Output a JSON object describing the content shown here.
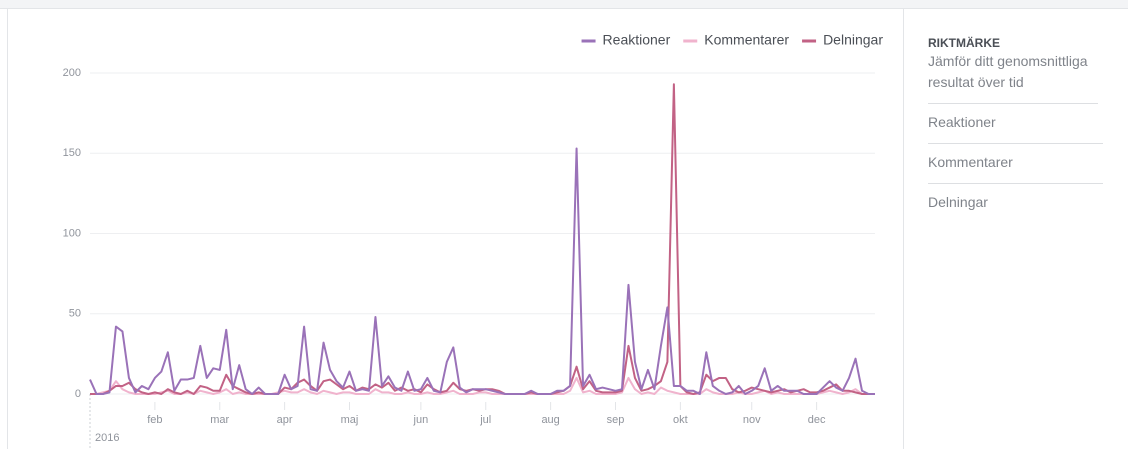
{
  "chart_data": {
    "type": "line",
    "categories": [
      null,
      null,
      null,
      null,
      null,
      null,
      null,
      null,
      null,
      null,
      "feb",
      null,
      null,
      null,
      null,
      null,
      null,
      null,
      null,
      null,
      "mar",
      null,
      null,
      null,
      null,
      null,
      null,
      null,
      null,
      null,
      "apr",
      null,
      null,
      null,
      null,
      null,
      null,
      null,
      null,
      null,
      "maj",
      null,
      null,
      null,
      null,
      null,
      null,
      null,
      null,
      null,
      null,
      "jun",
      null,
      null,
      null,
      null,
      null,
      null,
      null,
      null,
      null,
      "jul",
      null,
      null,
      null,
      null,
      null,
      null,
      null,
      null,
      null,
      "aug",
      null,
      null,
      null,
      null,
      null,
      null,
      null,
      null,
      null,
      "sep",
      null,
      null,
      null,
      null,
      null,
      null,
      null,
      null,
      null,
      "okt",
      null,
      null,
      null,
      null,
      null,
      null,
      null,
      null,
      null,
      null,
      "nov",
      null,
      null,
      null,
      null,
      null,
      null,
      null,
      null,
      null,
      "dec",
      null,
      null,
      null,
      null,
      null,
      null,
      null,
      null,
      null
    ],
    "year_label": "2016",
    "series": [
      {
        "name": "Reaktioner",
        "color": "#9a72b8",
        "values": [
          9,
          0,
          0,
          1,
          42,
          39,
          10,
          1,
          5,
          3,
          10,
          14,
          26,
          2,
          9,
          9,
          10,
          30,
          10,
          16,
          15,
          40,
          3,
          18,
          3,
          0,
          4,
          0,
          0,
          0,
          12,
          3,
          5,
          42,
          3,
          2,
          32,
          15,
          8,
          4,
          14,
          2,
          3,
          2,
          48,
          5,
          11,
          4,
          2,
          14,
          2,
          3,
          10,
          2,
          1,
          20,
          29,
          4,
          1,
          3,
          3,
          3,
          2,
          1,
          0,
          0,
          0,
          0,
          2,
          0,
          0,
          0,
          2,
          2,
          5,
          153,
          5,
          12,
          3,
          4,
          3,
          2,
          3,
          68,
          20,
          3,
          15,
          3,
          30,
          54,
          5,
          5,
          2,
          2,
          0,
          26,
          5,
          2,
          0,
          1,
          5,
          0,
          2,
          5,
          16,
          2,
          5,
          2,
          2,
          2,
          0,
          0,
          0,
          4,
          8,
          4,
          2,
          10,
          22,
          2,
          0,
          0
        ]
      },
      {
        "name": "Kommentarer",
        "color": "#f0b3cd",
        "values": [
          0,
          0,
          1,
          2,
          8,
          3,
          1,
          0,
          0,
          0,
          0,
          1,
          2,
          0,
          0,
          1,
          0,
          2,
          1,
          0,
          1,
          3,
          0,
          1,
          0,
          0,
          0,
          0,
          0,
          1,
          2,
          1,
          1,
          3,
          1,
          0,
          2,
          1,
          0,
          1,
          1,
          0,
          0,
          0,
          3,
          1,
          1,
          0,
          0,
          1,
          0,
          0,
          1,
          0,
          0,
          1,
          2,
          0,
          0,
          0,
          1,
          1,
          0,
          0,
          0,
          0,
          0,
          0,
          0,
          0,
          0,
          0,
          0,
          0,
          2,
          10,
          1,
          2,
          0,
          0,
          0,
          0,
          1,
          10,
          3,
          0,
          1,
          0,
          4,
          2,
          1,
          0,
          0,
          0,
          0,
          3,
          1,
          0,
          0,
          0,
          1,
          0,
          0,
          1,
          2,
          0,
          1,
          0,
          0,
          0,
          0,
          0,
          0,
          1,
          2,
          1,
          0,
          1,
          3,
          0,
          0,
          0
        ]
      },
      {
        "name": "Delningar",
        "color": "#c26285",
        "values": [
          0,
          0,
          0,
          2,
          5,
          5,
          7,
          3,
          1,
          0,
          1,
          0,
          3,
          1,
          0,
          2,
          0,
          5,
          4,
          2,
          2,
          12,
          5,
          3,
          1,
          0,
          1,
          0,
          0,
          0,
          4,
          3,
          7,
          9,
          5,
          2,
          8,
          9,
          6,
          3,
          5,
          2,
          4,
          3,
          6,
          4,
          7,
          2,
          4,
          2,
          3,
          1,
          6,
          3,
          1,
          2,
          7,
          3,
          2,
          3,
          2,
          3,
          3,
          2,
          0,
          0,
          0,
          0,
          1,
          0,
          0,
          0,
          1,
          2,
          5,
          17,
          3,
          8,
          2,
          1,
          1,
          1,
          2,
          30,
          10,
          2,
          3,
          5,
          8,
          20,
          193,
          5,
          1,
          0,
          1,
          12,
          8,
          10,
          10,
          3,
          1,
          2,
          4,
          3,
          2,
          1,
          2,
          3,
          1,
          2,
          3,
          1,
          1,
          2,
          4,
          6,
          2,
          2,
          1,
          0,
          0,
          0
        ]
      }
    ],
    "ylim": [
      0,
      200
    ],
    "yticks": [
      0,
      50,
      100,
      150,
      200
    ],
    "grid": true,
    "legend": "top-right"
  },
  "sidebar": {
    "title": "RIKTMÄRKE",
    "description": "Jämför ditt genomsnittliga resultat över tid",
    "items": [
      "Reaktioner",
      "Kommentarer",
      "Delningar"
    ]
  }
}
